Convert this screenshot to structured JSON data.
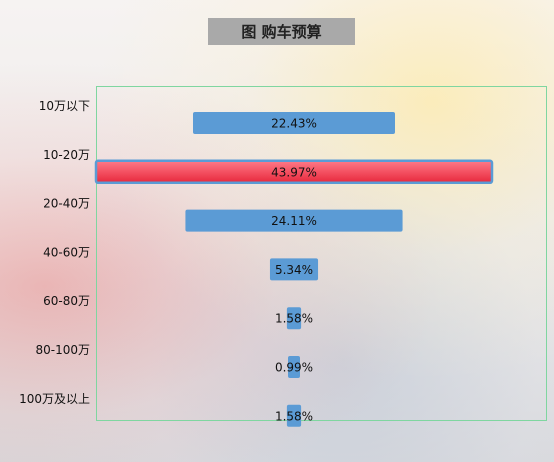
{
  "chart_data": {
    "type": "bar",
    "orientation": "horizontal",
    "title": "图 购车预算",
    "categories": [
      "10万以下",
      "10-20万",
      "20-40万",
      "40-60万",
      "60-80万",
      "80-100万",
      "100万及以上"
    ],
    "values": [
      22.43,
      43.97,
      24.11,
      5.34,
      1.58,
      0.99,
      1.58
    ],
    "value_labels": [
      "22.43%",
      "43.97%",
      "24.11%",
      "5.34%",
      "1.58%",
      "0.99%",
      "1.58%"
    ],
    "unit": "%",
    "highlight_category": "10-20万",
    "colors": {
      "bar": "#5b9bd5",
      "highlight_top": "#ff6b7a",
      "highlight_bottom": "#e8283c",
      "highlight_border": "#5b9bd5",
      "frame": "#7fd6a0"
    },
    "grid": false,
    "legend": "none"
  }
}
